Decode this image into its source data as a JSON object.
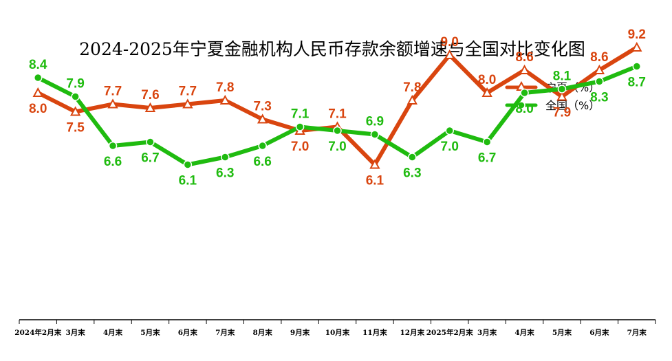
{
  "chart_data": {
    "type": "line",
    "title": "2024-2025年宁夏金融机构人民币存款余额增速与全国对比变化图",
    "categories": [
      "2024年2月末",
      "3月末",
      "4月末",
      "5月末",
      "6月末",
      "7月末",
      "8月末",
      "9月末",
      "10月末",
      "11月末",
      "12月末",
      "2025年2月末",
      "3月末",
      "4月末",
      "5月末",
      "6月末",
      "7月末"
    ],
    "ylim": [
      0,
      12
    ],
    "grid": false,
    "legend_position": "top-right",
    "series": [
      {
        "name": "宁夏（%）",
        "color": "#d9450f",
        "marker": "triangle",
        "values": [
          8.0,
          7.5,
          7.7,
          7.6,
          7.7,
          7.8,
          7.3,
          7.0,
          7.1,
          6.1,
          7.8,
          9.0,
          8.0,
          8.6,
          7.9,
          8.6,
          9.2
        ],
        "label_positions": [
          "below",
          "below",
          "above",
          "above",
          "above",
          "above",
          "above",
          "below",
          "above",
          "below",
          "above",
          "above",
          "above",
          "above",
          "below",
          "above",
          "above"
        ]
      },
      {
        "name": "全国（%）",
        "color": "#1fbb0f",
        "marker": "circle",
        "values": [
          8.4,
          7.9,
          6.6,
          6.7,
          6.1,
          6.3,
          6.6,
          7.1,
          7.0,
          6.9,
          6.3,
          7.0,
          6.7,
          8.0,
          8.1,
          8.3,
          8.7
        ],
        "label_positions": [
          "above",
          "above",
          "below",
          "below",
          "below",
          "below",
          "below",
          "above",
          "below",
          "above",
          "below",
          "below",
          "below",
          "below",
          "above",
          "below",
          "below"
        ]
      }
    ]
  }
}
